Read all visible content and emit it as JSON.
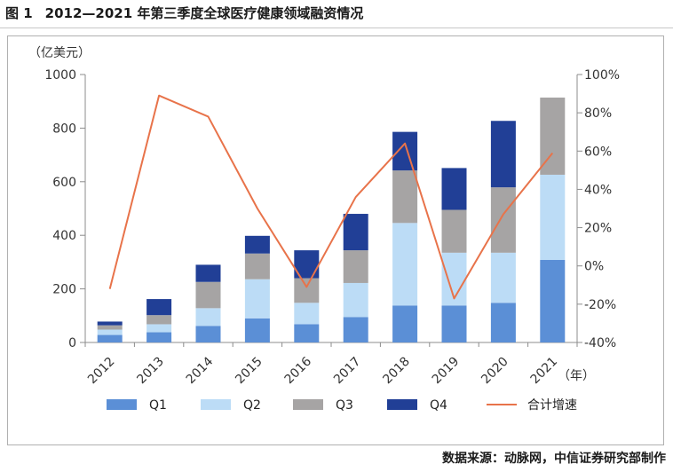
{
  "header": {
    "figure_number": "图 1",
    "title": "2012—2021 年第三季度全球医疗健康领域融资情况"
  },
  "source": "数据来源：动脉网，中信证券研究部制作",
  "chart_data": {
    "type": "bar",
    "stacked": true,
    "title": "2012—2021 年第三季度全球医疗健康领域融资情况",
    "ylabel": "（亿美元）",
    "xlabel": "（年）",
    "categories": [
      "2012",
      "2013",
      "2014",
      "2015",
      "2016",
      "2017",
      "2018",
      "2019",
      "2020",
      "2021"
    ],
    "ylim": [
      0,
      1000
    ],
    "yticks": [
      0,
      200,
      400,
      600,
      800,
      1000
    ],
    "y2lim": [
      -40,
      100
    ],
    "y2ticks": [
      "-40%",
      "-20%",
      "0%",
      "20%",
      "40%",
      "60%",
      "80%",
      "100%"
    ],
    "y2tick_values": [
      -40,
      -20,
      0,
      20,
      40,
      60,
      80,
      100
    ],
    "series": [
      {
        "name": "Q1",
        "color": "#5b8fd6",
        "values": [
          28,
          38,
          62,
          90,
          68,
          95,
          138,
          138,
          148,
          308
        ]
      },
      {
        "name": "Q2",
        "color": "#bcdcf6",
        "values": [
          20,
          30,
          66,
          146,
          80,
          127,
          308,
          197,
          187,
          318
        ]
      },
      {
        "name": "Q3",
        "color": "#a6a4a4",
        "values": [
          16,
          34,
          98,
          96,
          92,
          122,
          196,
          160,
          244,
          288
        ]
      },
      {
        "name": "Q4",
        "color": "#213f96",
        "values": [
          14,
          60,
          64,
          66,
          104,
          136,
          144,
          156,
          248,
          0
        ]
      }
    ],
    "line_series": {
      "name": "合计增速",
      "color": "#e8734a",
      "axis": "right",
      "values": [
        -12,
        89,
        78,
        30,
        -11,
        36,
        64,
        -17,
        27,
        59
      ]
    },
    "legend": [
      "Q1",
      "Q2",
      "Q3",
      "Q4",
      "合计增速"
    ],
    "legend_position": "bottom"
  }
}
